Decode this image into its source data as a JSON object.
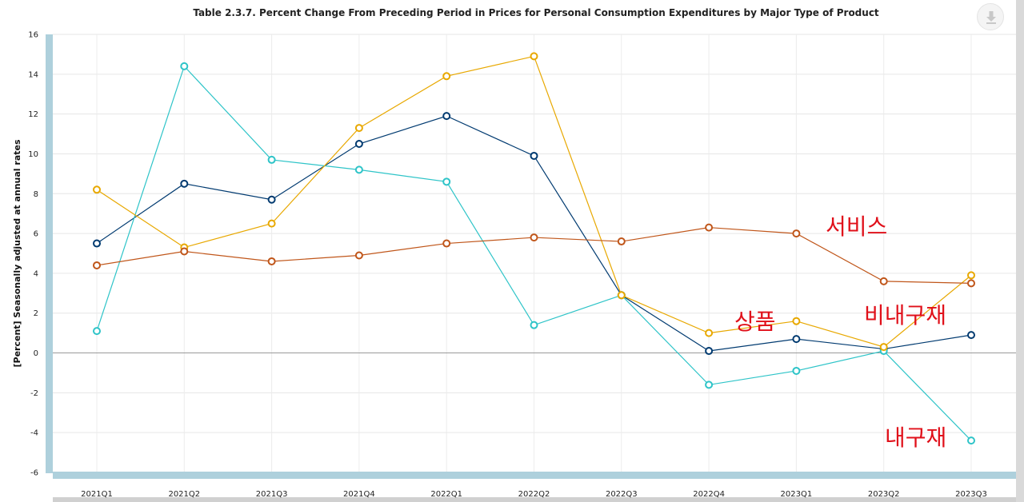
{
  "chart_data": {
    "type": "line",
    "title": "Table 2.3.7. Percent Change From Preceding Period in Prices for Personal Consumption Expenditures by Major Type of Product",
    "ylabel": "[Percent] Seasonally adjusted at annual rates",
    "xlabel": "",
    "ylim": [
      -6,
      16
    ],
    "yticks": [
      -6,
      -4,
      -2,
      0,
      2,
      4,
      6,
      8,
      10,
      12,
      14,
      16
    ],
    "grid": true,
    "categories": [
      "2021Q1",
      "2021Q2",
      "2021Q3",
      "2021Q4",
      "2022Q1",
      "2022Q2",
      "2022Q3",
      "2022Q4",
      "2023Q1",
      "2023Q2",
      "2023Q3"
    ],
    "series": [
      {
        "name": "상품",
        "color": "#003a70",
        "values": [
          5.5,
          8.5,
          7.7,
          10.5,
          11.9,
          9.9,
          2.9,
          0.1,
          0.7,
          0.2,
          0.9
        ]
      },
      {
        "name": "내구재",
        "color": "#2ec4c8",
        "values": [
          1.1,
          14.4,
          9.7,
          9.2,
          8.6,
          1.4,
          2.9,
          -1.6,
          -0.9,
          0.1,
          -4.4
        ]
      },
      {
        "name": "비내구재",
        "color": "#e8a800",
        "values": [
          8.2,
          5.3,
          6.5,
          11.3,
          13.9,
          14.9,
          2.9,
          1.0,
          1.6,
          0.3,
          3.9
        ]
      },
      {
        "name": "서비스",
        "color": "#c0561a",
        "values": [
          4.4,
          5.1,
          4.6,
          4.9,
          5.5,
          5.8,
          5.6,
          6.3,
          6.0,
          3.6,
          3.5
        ]
      }
    ],
    "annotations": [
      {
        "text": "서비스"
      },
      {
        "text": "상품"
      },
      {
        "text": "비내구재"
      },
      {
        "text": "내구재"
      }
    ]
  }
}
